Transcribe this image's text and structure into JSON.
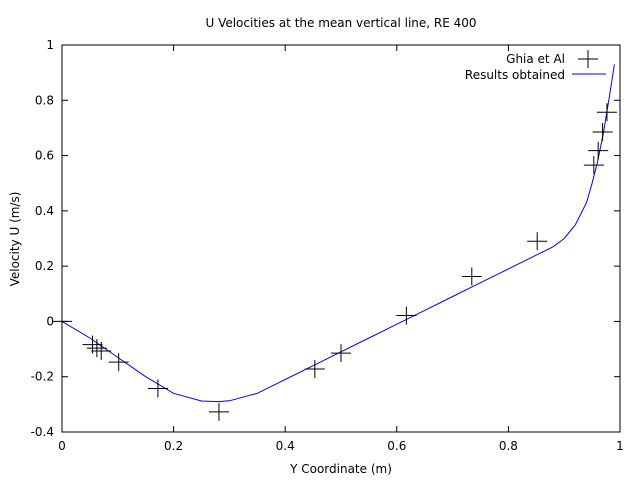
{
  "chart_data": {
    "type": "line",
    "title": "U Velocities at the mean vertical line, RE 400",
    "xlabel": "Y Coordinate (m)",
    "ylabel": "Velocity U (m/s)",
    "xlim": [
      0,
      1
    ],
    "ylim": [
      -0.4,
      1
    ],
    "xticks": [
      0,
      0.2,
      0.4,
      0.6,
      0.8,
      1
    ],
    "yticks": [
      -0.4,
      -0.2,
      0,
      0.2,
      0.4,
      0.6,
      0.8,
      1
    ],
    "xtick_labels": [
      "0",
      "0.2",
      "0.4",
      "0.6",
      "0.8",
      "1"
    ],
    "ytick_labels": [
      "-0.4",
      "-0.2",
      "0",
      "0.2",
      "0.4",
      "0.6",
      "0.8",
      "1"
    ],
    "grid": false,
    "legend_position": "top-right",
    "series": [
      {
        "name": "Ghia et Al",
        "kind": "scatter",
        "marker": "plus",
        "color": "#000000",
        "x": [
          0.0,
          0.0547,
          0.0625,
          0.0703,
          0.1016,
          0.1719,
          0.2813,
          0.4531,
          0.5,
          0.6172,
          0.7344,
          0.8516,
          0.9531,
          0.9609,
          0.9688,
          0.9766
        ],
        "y": [
          0.0,
          -0.0838,
          -0.0966,
          -0.1068,
          -0.1473,
          -0.2426,
          -0.3271,
          -0.172,
          -0.1148,
          0.0214,
          0.1624,
          0.2902,
          0.5655,
          0.6179,
          0.6852,
          0.7569
        ]
      },
      {
        "name": "Results obtained",
        "kind": "line",
        "color": "#0000ff",
        "x": [
          0.0,
          0.05,
          0.1,
          0.15,
          0.2,
          0.25,
          0.28,
          0.3,
          0.35,
          0.4,
          0.45,
          0.5,
          0.55,
          0.6,
          0.65,
          0.7,
          0.75,
          0.8,
          0.85,
          0.88,
          0.9,
          0.92,
          0.94,
          0.95,
          0.96,
          0.97,
          0.98,
          0.99
        ],
        "y": [
          0.0,
          -0.06,
          -0.13,
          -0.2,
          -0.26,
          -0.288,
          -0.29,
          -0.287,
          -0.26,
          -0.21,
          -0.16,
          -0.11,
          -0.06,
          -0.01,
          0.04,
          0.09,
          0.14,
          0.19,
          0.24,
          0.27,
          0.3,
          0.35,
          0.43,
          0.5,
          0.58,
          0.68,
          0.8,
          0.93
        ]
      }
    ]
  }
}
